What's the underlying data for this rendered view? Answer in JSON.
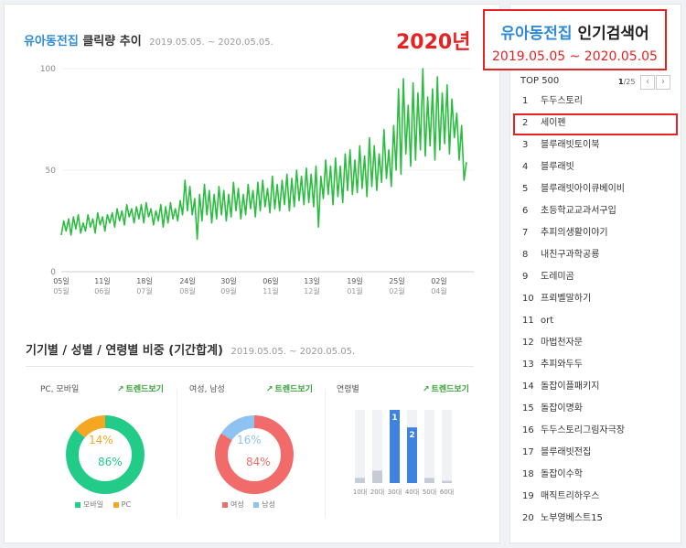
{
  "header": {
    "keyword": "유아동전집",
    "title_suffix": " 클릭량 추이",
    "date_range": "2019.05.05. ~ 2020.05.05.",
    "year_badge": "2020년"
  },
  "chart_data": [
    {
      "type": "line",
      "title": "유아동전집 클릭량 추이",
      "ylim": [
        0,
        100
      ],
      "y_ticks": [
        "0",
        "50",
        "100"
      ],
      "x_ticks": [
        {
          "day": "05일",
          "month": "05월"
        },
        {
          "day": "11일",
          "month": "06월"
        },
        {
          "day": "18일",
          "month": "07월"
        },
        {
          "day": "24일",
          "month": "08월"
        },
        {
          "day": "30일",
          "month": "09월"
        },
        {
          "day": "06일",
          "month": "11월"
        },
        {
          "day": "13일",
          "month": "12월"
        },
        {
          "day": "19일",
          "month": "01월"
        },
        {
          "day": "25일",
          "month": "02월"
        },
        {
          "day": "02일",
          "month": "04월"
        }
      ],
      "values": [
        18,
        25,
        20,
        26,
        18,
        27,
        21,
        28,
        19,
        24,
        20,
        28,
        22,
        26,
        19,
        29,
        23,
        27,
        20,
        28,
        24,
        29,
        22,
        31,
        25,
        30,
        23,
        33,
        27,
        31,
        24,
        32,
        26,
        33,
        24,
        34,
        27,
        31,
        23,
        30,
        25,
        33,
        22,
        32,
        24,
        34,
        26,
        31,
        25,
        35,
        28,
        45,
        30,
        42,
        28,
        36,
        16,
        38,
        25,
        43,
        28,
        40,
        24,
        38,
        26,
        42,
        28,
        40,
        25,
        38,
        27,
        44,
        30,
        41,
        26,
        38,
        28,
        43,
        31,
        40,
        27,
        44,
        30,
        45,
        32,
        41,
        29,
        47,
        31,
        43,
        30,
        45,
        33,
        48,
        30,
        46,
        32,
        50,
        35,
        47,
        33,
        51,
        34,
        48,
        32,
        52,
        22,
        47,
        36,
        55,
        38,
        52,
        33,
        56,
        37,
        52,
        34,
        58,
        40,
        60,
        38,
        55,
        39,
        62,
        41,
        57,
        37,
        66,
        42,
        62,
        40,
        58,
        44,
        70,
        46,
        60,
        42,
        72,
        50,
        90,
        48,
        95,
        58,
        82,
        52,
        93,
        55,
        88,
        60,
        100,
        57,
        86,
        62,
        90,
        55,
        96,
        60,
        88,
        63,
        92,
        58,
        85,
        66,
        78,
        55,
        72,
        45,
        54
      ],
      "line_color": "#2bbd40"
    },
    {
      "type": "pie",
      "title": "PC, 모바일",
      "labels": [
        "모바일",
        "PC"
      ],
      "values": [
        86,
        14
      ],
      "colors": [
        "#22cc88",
        "#f5a623"
      ]
    },
    {
      "type": "pie",
      "title": "여성, 남성",
      "labels": [
        "여성",
        "남성"
      ],
      "values": [
        84,
        16
      ],
      "colors": [
        "#f26b6b",
        "#8ec2f0"
      ]
    },
    {
      "type": "bar",
      "title": "연령별",
      "categories": [
        "10대",
        "20대",
        "30대",
        "40대",
        "50대",
        "60대"
      ],
      "values": [
        7,
        17,
        100,
        76,
        7,
        3
      ],
      "rank_labels": [
        "",
        "",
        "1",
        "2",
        "",
        ""
      ],
      "colors": {
        "active": "#3f82e0",
        "inactive": "#c6cbd6",
        "track": "#f1f2f5"
      }
    }
  ],
  "section2": {
    "title": "기기별 / 성별 / 연령별 비중 (기간합계)",
    "date_range": "2019.05.05. ~ 2020.05.05.",
    "trend_label": "트렌드보기",
    "panels": {
      "device": {
        "title": "PC, 모바일",
        "big": "86%",
        "small": "14%",
        "legend": [
          "모바일",
          "PC"
        ]
      },
      "gender": {
        "title": "여성, 남성",
        "big": "84%",
        "small": "16%",
        "legend": [
          "여성",
          "남성"
        ]
      },
      "age": {
        "title": "연령별"
      }
    }
  },
  "popup": {
    "keyword": "유아동전집",
    "title_suffix": " 인기검색어",
    "date_range": "2019.05.05 ~ 2020.05.05"
  },
  "sidebar": {
    "top_label": "TOP 500",
    "page_current": "1",
    "page_total": "/25",
    "prev_icon": "‹",
    "next_icon": "›",
    "items": [
      {
        "rank": "1",
        "name": "두두스토리"
      },
      {
        "rank": "2",
        "name": "세이펜"
      },
      {
        "rank": "3",
        "name": "블루래빗토이북"
      },
      {
        "rank": "4",
        "name": "블루래빗"
      },
      {
        "rank": "5",
        "name": "블루래빗아이큐베이비"
      },
      {
        "rank": "6",
        "name": "초등학교교과서구입"
      },
      {
        "rank": "7",
        "name": "추피의생활이야기"
      },
      {
        "rank": "8",
        "name": "내친구과학공룡"
      },
      {
        "rank": "9",
        "name": "도레미곰"
      },
      {
        "rank": "10",
        "name": "프뢰벨말하기"
      },
      {
        "rank": "11",
        "name": "ort"
      },
      {
        "rank": "12",
        "name": "마법천자문"
      },
      {
        "rank": "13",
        "name": "추피와두두"
      },
      {
        "rank": "14",
        "name": "돌잡이플패키지"
      },
      {
        "rank": "15",
        "name": "돌잡이명화"
      },
      {
        "rank": "16",
        "name": "두두스토리그림자극장"
      },
      {
        "rank": "17",
        "name": "블루래빗전집"
      },
      {
        "rank": "18",
        "name": "돌잡이수학"
      },
      {
        "rank": "19",
        "name": "매직트리하우스"
      },
      {
        "rank": "20",
        "name": "노부영베스트15"
      }
    ]
  }
}
